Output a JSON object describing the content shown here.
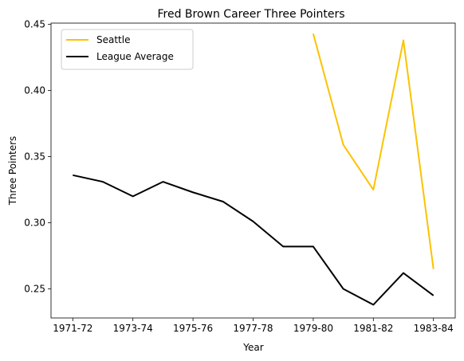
{
  "chart_data": {
    "type": "line",
    "title": "Fred Brown  Career Three Pointers",
    "xlabel": "Year",
    "ylabel": "Three Pointers",
    "x": [
      "1971-72",
      "1972-73",
      "1973-74",
      "1974-75",
      "1975-76",
      "1976-77",
      "1977-78",
      "1978-79",
      "1979-80",
      "1980-81",
      "1981-82",
      "1982-83",
      "1983-84"
    ],
    "x_tick_labels": [
      "1971-72",
      "1973-74",
      "1975-76",
      "1977-78",
      "1979-80",
      "1981-82",
      "1983-84"
    ],
    "ylim": [
      0.228,
      0.451
    ],
    "y_ticks": [
      0.25,
      0.3,
      0.35,
      0.4,
      0.45
    ],
    "y_tick_labels": [
      "0.25",
      "0.30",
      "0.35",
      "0.40",
      "0.45"
    ],
    "grid": false,
    "legend_position": "top-left",
    "series": [
      {
        "name": "Seattle",
        "color": "#fcc200",
        "values": [
          null,
          null,
          null,
          null,
          null,
          null,
          null,
          null,
          0.443,
          0.359,
          0.325,
          0.438,
          0.265
        ]
      },
      {
        "name": "League Average",
        "color": "#000000",
        "values": [
          0.336,
          0.331,
          0.32,
          0.331,
          0.323,
          0.316,
          0.301,
          0.282,
          0.282,
          0.25,
          0.238,
          0.262,
          0.245
        ]
      }
    ]
  }
}
